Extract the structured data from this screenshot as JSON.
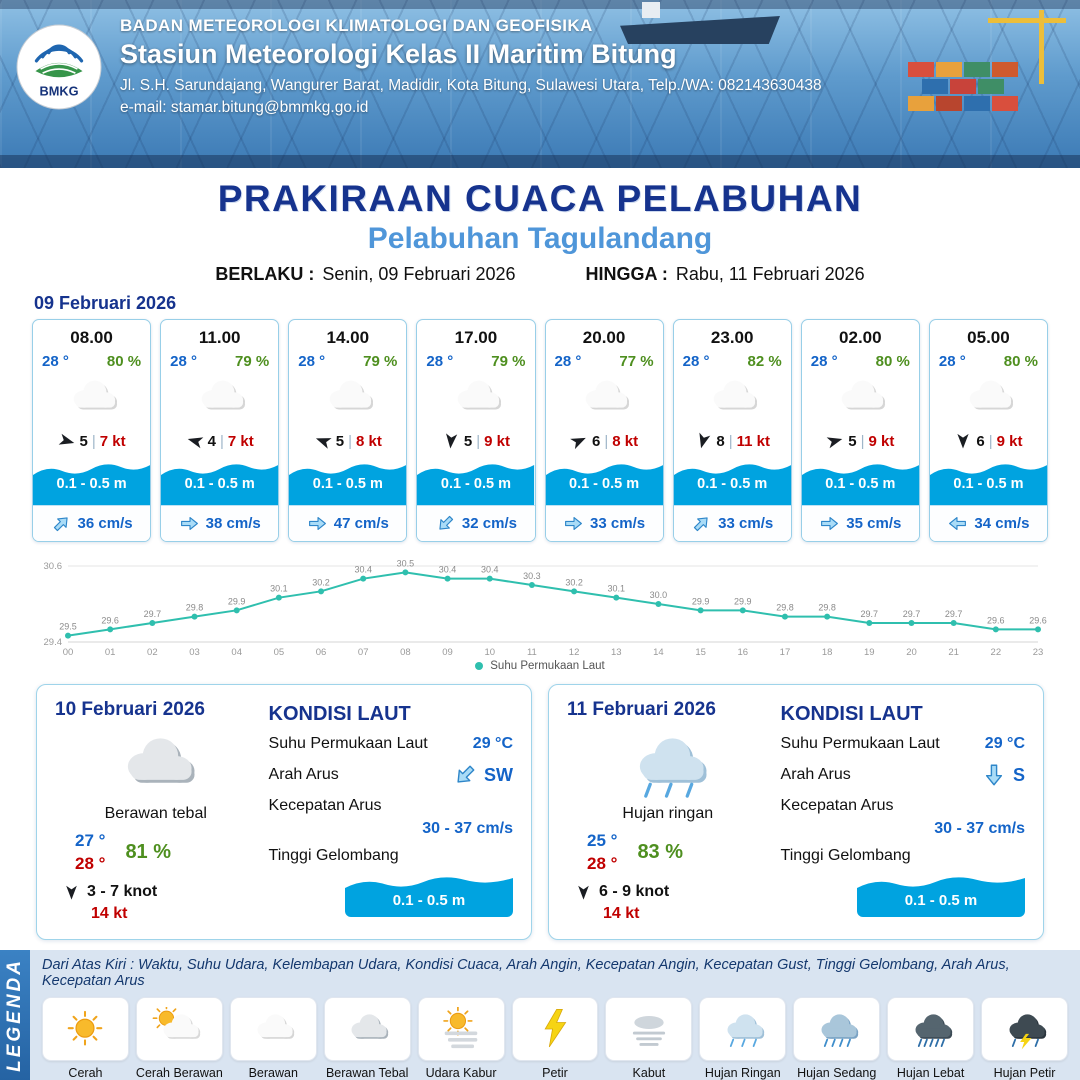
{
  "header": {
    "logo_text": "BMKG",
    "agency": "BADAN METEOROLOGI KLIMATOLOGI DAN GEOFISIKA",
    "station": "Stasiun Meteorologi Kelas II Maritim Bitung",
    "address": "Jl. S.H. Sarundajang, Wangurer Barat, Madidir, Kota Bitung, Sulawesi Utara, Telp./WA: 082143630438",
    "email": "e-mail: stamar.bitung@bmmkg.go.id"
  },
  "title": {
    "main": "PRAKIRAAN CUACA PELABUHAN",
    "sub": "Pelabuhan Tagulandang",
    "valid_from_label": "BERLAKU :",
    "valid_from": "Senin, 09 Februari 2026",
    "valid_to_label": "HINGGA :",
    "valid_to": "Rabu, 11 Februari 2026",
    "forecast_date": "09 Februari 2026"
  },
  "ui": {
    "separator": "|"
  },
  "hourly": [
    {
      "time": "08.00",
      "temp": "28 °",
      "humidity": "80 %",
      "weather_icon": "cloud",
      "wind_deg": 15,
      "wind_speed": "5",
      "gust": "7 kt",
      "wave": "0.1 - 0.5 m",
      "current_deg": 315,
      "current_speed": "36 cm/s"
    },
    {
      "time": "11.00",
      "temp": "28 °",
      "humidity": "79 %",
      "weather_icon": "cloud",
      "wind_deg": 195,
      "wind_speed": "4",
      "gust": "7 kt",
      "wave": "0.1 - 0.5 m",
      "current_deg": 0,
      "current_speed": "38 cm/s"
    },
    {
      "time": "14.00",
      "temp": "28 °",
      "humidity": "79 %",
      "weather_icon": "cloud",
      "wind_deg": 200,
      "wind_speed": "5",
      "gust": "8 kt",
      "wave": "0.1 - 0.5 m",
      "current_deg": 0,
      "current_speed": "47 cm/s"
    },
    {
      "time": "17.00",
      "temp": "28 °",
      "humidity": "79 %",
      "weather_icon": "cloud",
      "wind_deg": 95,
      "wind_speed": "5",
      "gust": "9 kt",
      "wave": "0.1 - 0.5 m",
      "current_deg": 135,
      "current_speed": "32 cm/s"
    },
    {
      "time": "20.00",
      "temp": "28 °",
      "humidity": "77 %",
      "weather_icon": "cloud",
      "wind_deg": 335,
      "wind_speed": "6",
      "gust": "8 kt",
      "wave": "0.1 - 0.5 m",
      "current_deg": 0,
      "current_speed": "33 cm/s"
    },
    {
      "time": "23.00",
      "temp": "28 °",
      "humidity": "82 %",
      "weather_icon": "cloud",
      "wind_deg": 105,
      "wind_speed": "8",
      "gust": "11 kt",
      "wave": "0.1 - 0.5 m",
      "current_deg": 315,
      "current_speed": "33 cm/s"
    },
    {
      "time": "02.00",
      "temp": "28 °",
      "humidity": "80 %",
      "weather_icon": "cloud",
      "wind_deg": 345,
      "wind_speed": "5",
      "gust": "9 kt",
      "wave": "0.1 - 0.5 m",
      "current_deg": 0,
      "current_speed": "35 cm/s"
    },
    {
      "time": "05.00",
      "temp": "28 °",
      "humidity": "80 %",
      "weather_icon": "cloud",
      "wind_deg": 90,
      "wind_speed": "6",
      "gust": "9 kt",
      "wave": "0.1 - 0.5 m",
      "current_deg": 180,
      "current_speed": "34 cm/s"
    }
  ],
  "chart_data": {
    "type": "line",
    "series_name": "Suhu Permukaan Laut",
    "x": [
      "00",
      "01",
      "02",
      "03",
      "04",
      "05",
      "06",
      "07",
      "08",
      "09",
      "10",
      "11",
      "12",
      "13",
      "14",
      "15",
      "16",
      "17",
      "18",
      "19",
      "20",
      "21",
      "22",
      "23"
    ],
    "values": [
      29.5,
      29.6,
      29.7,
      29.8,
      29.9,
      30.1,
      30.2,
      30.4,
      30.5,
      30.4,
      30.4,
      30.3,
      30.2,
      30.1,
      30.0,
      29.9,
      29.9,
      29.8,
      29.8,
      29.7,
      29.7,
      29.7,
      29.6,
      29.6
    ],
    "ylim": [
      29.4,
      30.6
    ],
    "line_color": "#2fbfae",
    "grid": true,
    "legend_position": "bottom"
  },
  "daily": [
    {
      "date": "10 Februari 2026",
      "icon": "cloud-thick",
      "condition": "Berawan tebal",
      "temp_min": "27 °",
      "temp_max": "28 °",
      "humidity": "81 %",
      "wind_deg": 90,
      "wind_range": "3  - 7 knot",
      "gust": "14 kt",
      "sea": {
        "heading": "KONDISI LAUT",
        "sst_label": "Suhu Permukaan Laut",
        "sst": "29 °C",
        "current_dir_label": "Arah Arus",
        "current_dir": "SW",
        "current_deg": 135,
        "current_speed_label": "Kecepatan Arus",
        "current_speed": "30 - 37 cm/s",
        "wave_label": "Tinggi Gelombang",
        "wave": "0.1 - 0.5 m"
      }
    },
    {
      "date": "11 Februari 2026",
      "icon": "rain-light",
      "condition": "Hujan ringan",
      "temp_min": "25 °",
      "temp_max": "28 °",
      "humidity": "83 %",
      "wind_deg": 90,
      "wind_range": "6  - 9 knot",
      "gust": "14 kt",
      "sea": {
        "heading": "KONDISI LAUT",
        "sst_label": "Suhu Permukaan Laut",
        "sst": "29 °C",
        "current_dir_label": "Arah Arus",
        "current_dir": "S",
        "current_deg": 90,
        "current_speed_label": "Kecepatan Arus",
        "current_speed": "30 - 37 cm/s",
        "wave_label": "Tinggi Gelombang",
        "wave": "0.1 - 0.5 m"
      }
    }
  ],
  "legend": {
    "sidebar": "LEGENDA",
    "note": "Dari Atas Kiri : Waktu, Suhu Udara, Kelembapan Udara, Kondisi Cuaca, Arah Angin, Kecepatan Angin, Kecepatan Gust, Tinggi Gelombang, Arah Arus, Kecepatan Arus",
    "items": [
      {
        "label": "Cerah",
        "icon": "sun"
      },
      {
        "label": "Cerah Berawan",
        "icon": "sun-cloud"
      },
      {
        "label": "Berawan",
        "icon": "cloud"
      },
      {
        "label": "Berawan Tebal",
        "icon": "cloud-thick"
      },
      {
        "label": "Udara Kabur",
        "icon": "haze"
      },
      {
        "label": "Petir",
        "icon": "lightning"
      },
      {
        "label": "Kabut",
        "icon": "fog"
      },
      {
        "label": "Hujan Ringan",
        "icon": "rain-light"
      },
      {
        "label": "Hujan Sedang",
        "icon": "rain-medium"
      },
      {
        "label": "Hujan Lebat",
        "icon": "rain-heavy"
      },
      {
        "label": "Hujan Petir",
        "icon": "storm"
      }
    ]
  }
}
